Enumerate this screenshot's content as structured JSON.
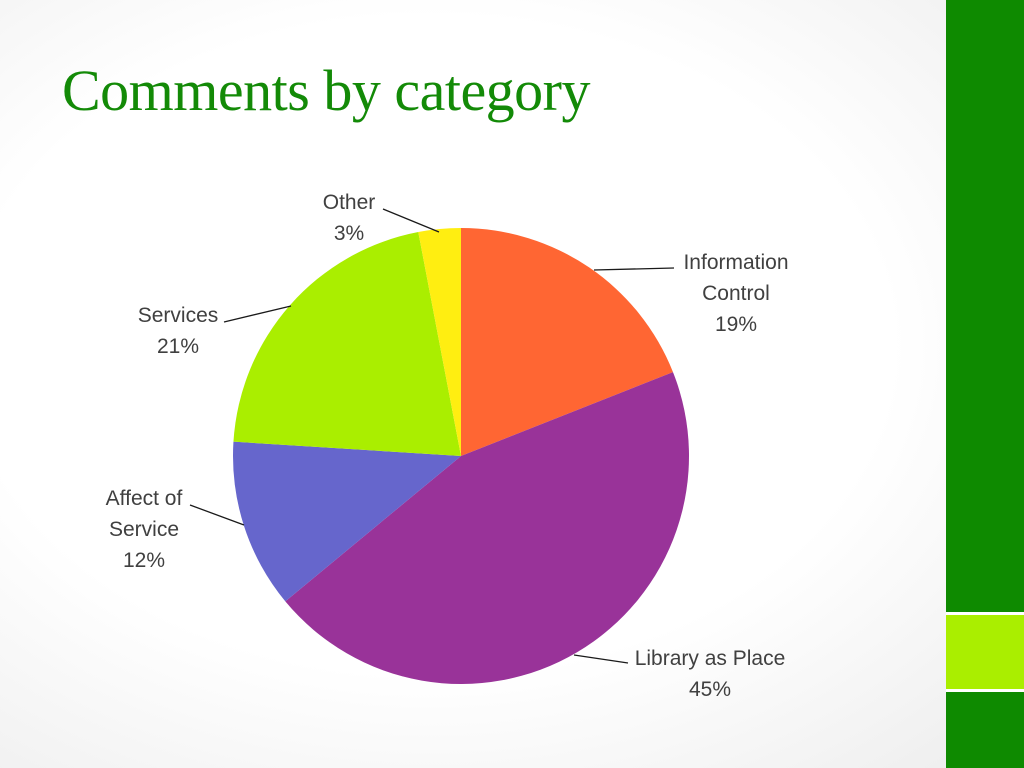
{
  "slide": {
    "title": "Comments by category"
  },
  "theme": {
    "accent_green": "#138a07",
    "bar_dark": "#0e8a00",
    "bar_light": "#aaee00",
    "label_color": "#404040"
  },
  "chart_data": {
    "type": "pie",
    "title": "",
    "start_angle_deg": 0,
    "direction": "clockwise",
    "legend": "none",
    "slices": [
      {
        "name": "Information Control",
        "label_lines": [
          "Information",
          "Control"
        ],
        "value": 19,
        "label": "19%",
        "color": "#ff6633"
      },
      {
        "name": "Library as Place",
        "label_lines": [
          "Library as Place"
        ],
        "value": 45,
        "label": "45%",
        "color": "#993399"
      },
      {
        "name": "Affect of Service",
        "label_lines": [
          "Affect of",
          "Service"
        ],
        "value": 12,
        "label": "12%",
        "color": "#6666cc"
      },
      {
        "name": "Services",
        "label_lines": [
          "Services"
        ],
        "value": 21,
        "label": "21%",
        "color": "#aaee00"
      },
      {
        "name": "Other",
        "label_lines": [
          "Other"
        ],
        "value": 3,
        "label": "3%",
        "color": "#ffee11"
      }
    ]
  }
}
